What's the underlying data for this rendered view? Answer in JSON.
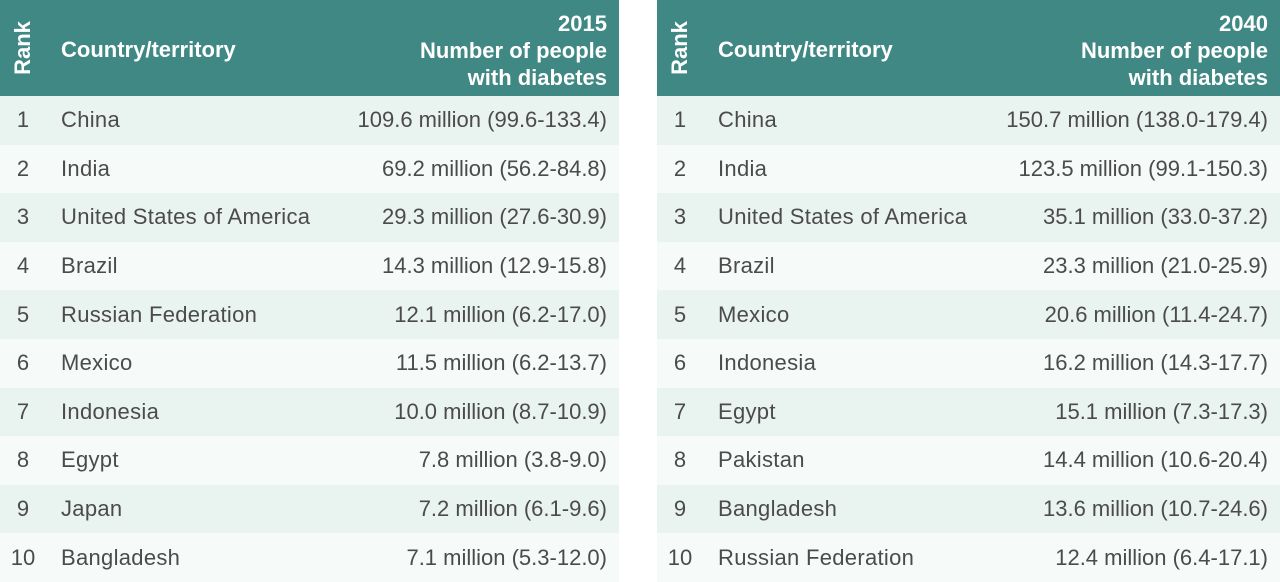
{
  "tables": [
    {
      "header": {
        "rank": "Rank",
        "country": "Country/territory",
        "year": "2015",
        "value_line1": "Number of people",
        "value_line2": "with diabetes"
      },
      "rows": [
        {
          "rank": "1",
          "country": "China",
          "value": "109.6 million (99.6-133.4)"
        },
        {
          "rank": "2",
          "country": "India",
          "value": "69.2 million (56.2-84.8)"
        },
        {
          "rank": "3",
          "country": "United States of America",
          "value": "29.3 million (27.6-30.9)"
        },
        {
          "rank": "4",
          "country": "Brazil",
          "value": "14.3 million (12.9-15.8)"
        },
        {
          "rank": "5",
          "country": "Russian Federation",
          "value": "12.1 million (6.2-17.0)"
        },
        {
          "rank": "6",
          "country": "Mexico",
          "value": "11.5 million (6.2-13.7)"
        },
        {
          "rank": "7",
          "country": "Indonesia",
          "value": "10.0 million (8.7-10.9)"
        },
        {
          "rank": "8",
          "country": "Egypt",
          "value": "7.8 million (3.8-9.0)"
        },
        {
          "rank": "9",
          "country": "Japan",
          "value": "7.2 million (6.1-9.6)"
        },
        {
          "rank": "10",
          "country": "Bangladesh",
          "value": "7.1 million (5.3-12.0)"
        }
      ]
    },
    {
      "header": {
        "rank": "Rank",
        "country": "Country/territory",
        "year": "2040",
        "value_line1": "Number of people",
        "value_line2": "with diabetes"
      },
      "rows": [
        {
          "rank": "1",
          "country": "China",
          "value": "150.7 million (138.0-179.4)"
        },
        {
          "rank": "2",
          "country": "India",
          "value": "123.5 million (99.1-150.3)"
        },
        {
          "rank": "3",
          "country": "United States of America",
          "value": "35.1 million (33.0-37.2)"
        },
        {
          "rank": "4",
          "country": "Brazil",
          "value": "23.3 million (21.0-25.9)"
        },
        {
          "rank": "5",
          "country": "Mexico",
          "value": "20.6 million (11.4-24.7)"
        },
        {
          "rank": "6",
          "country": "Indonesia",
          "value": "16.2 million (14.3-17.7)"
        },
        {
          "rank": "7",
          "country": "Egypt",
          "value": "15.1 million (7.3-17.3)"
        },
        {
          "rank": "8",
          "country": "Pakistan",
          "value": "14.4 million (10.6-20.4)"
        },
        {
          "rank": "9",
          "country": "Bangladesh",
          "value": "13.6 million (10.7-24.6)"
        },
        {
          "rank": "10",
          "country": "Russian Federation",
          "value": "12.4 million (6.4-17.1)"
        }
      ]
    }
  ],
  "colors": {
    "header_bg": "#3f8883",
    "row_odd": "#e9f3f0",
    "row_even": "#f6faf9",
    "text": "#4b4b4b"
  }
}
